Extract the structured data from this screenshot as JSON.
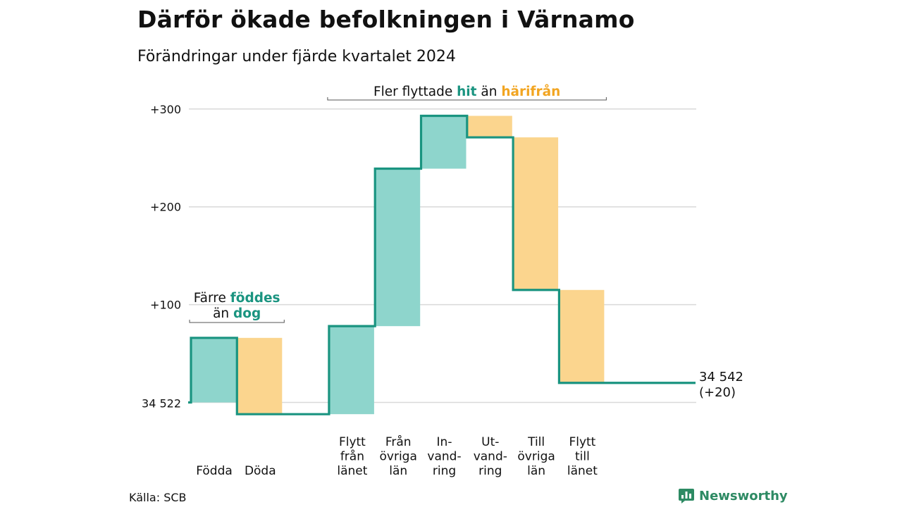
{
  "title": "Därför ökade befolkningen i Värnamo",
  "subtitle": "Förändringar under fjärde kvartalet 2024",
  "source": "Källa: SCB",
  "brand": {
    "name": "Newsworthy",
    "icon": "newsworthy-chat-bars-icon"
  },
  "colors": {
    "increase": "#8ed5cc",
    "decrease": "#fbd58e",
    "line": "#1a9480",
    "highlight_green": "#1a9480",
    "highlight_orange": "#f2a521",
    "grid": "#d9d9d9"
  },
  "chart_data": {
    "type": "waterfall",
    "title": "Därför ökade befolkningen i Värnamo",
    "subtitle": "Förändringar under fjärde kvartalet 2024",
    "base_value": 34522,
    "base_label": "34 522",
    "end_label": [
      "34 542",
      "(+20)"
    ],
    "y_ticks": [
      {
        "value": 300,
        "label": "+300"
      },
      {
        "value": 200,
        "label": "+200"
      },
      {
        "value": 100,
        "label": "+100"
      }
    ],
    "ylim": [
      -15,
      305
    ],
    "grid": true,
    "categories": [
      {
        "label": [
          "Födda"
        ],
        "change": 66
      },
      {
        "label": [
          "Döda"
        ],
        "change": -78
      },
      {
        "label": [],
        "change": 0
      },
      {
        "label": [
          "Flytt",
          "från",
          "länet"
        ],
        "change": 90
      },
      {
        "label": [
          "Från",
          "övriga",
          "län"
        ],
        "change": 161
      },
      {
        "label": [
          "In-",
          "vand-",
          "ring"
        ],
        "change": 54
      },
      {
        "label": [
          "Ut-",
          "vand-",
          "ring"
        ],
        "change": -22
      },
      {
        "label": [
          "Till",
          "övriga",
          "län"
        ],
        "change": -156
      },
      {
        "label": [
          "Flytt",
          "till",
          "länet"
        ],
        "change": -95
      },
      {
        "label": [],
        "change": 0
      }
    ],
    "annotations": [
      {
        "lines": [
          [
            "Färre ",
            "föddes"
          ],
          [
            "än ",
            "dog"
          ]
        ],
        "from": 0,
        "to": 1
      },
      {
        "lines": [
          [
            "Fler flyttade ",
            "hit",
            " än ",
            "härifrån"
          ]
        ],
        "from": 3,
        "to": 8
      }
    ]
  }
}
